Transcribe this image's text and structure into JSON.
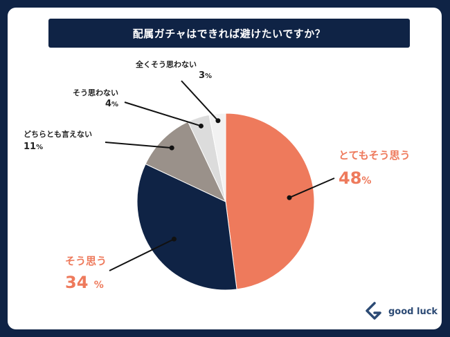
{
  "title": "配属ガチャはできれば避けたいですか？",
  "logo": {
    "text": "good luck",
    "icon": "good-luck-logo-icon",
    "color": "#2c4a74"
  },
  "colors": {
    "background": "#0f2345",
    "accent": "#ee7a5c",
    "navy": "#0f2345",
    "gray": "#9a918a",
    "light": "#dcdcdc"
  },
  "chart_data": {
    "type": "pie",
    "title": "配属ガチャはできれば避けたいですか？",
    "start": "12 o'clock",
    "direction": "clockwise",
    "unit": "%",
    "slices": [
      {
        "label": "とてもそう思う",
        "value": 48,
        "display": "48",
        "color": "#ee7a5c"
      },
      {
        "label": "そう思う",
        "value": 34,
        "display": "34",
        "color": "#0f2345"
      },
      {
        "label": "どちらとも言えない",
        "value": 11,
        "display": "11",
        "color": "#9a918a"
      },
      {
        "label": "そう思わない",
        "value": 4,
        "display": "4",
        "color": "#dcdcdc"
      },
      {
        "label": "全くそう思わない",
        "value": 3,
        "display": "3",
        "color": "#f2f2f2"
      }
    ]
  }
}
